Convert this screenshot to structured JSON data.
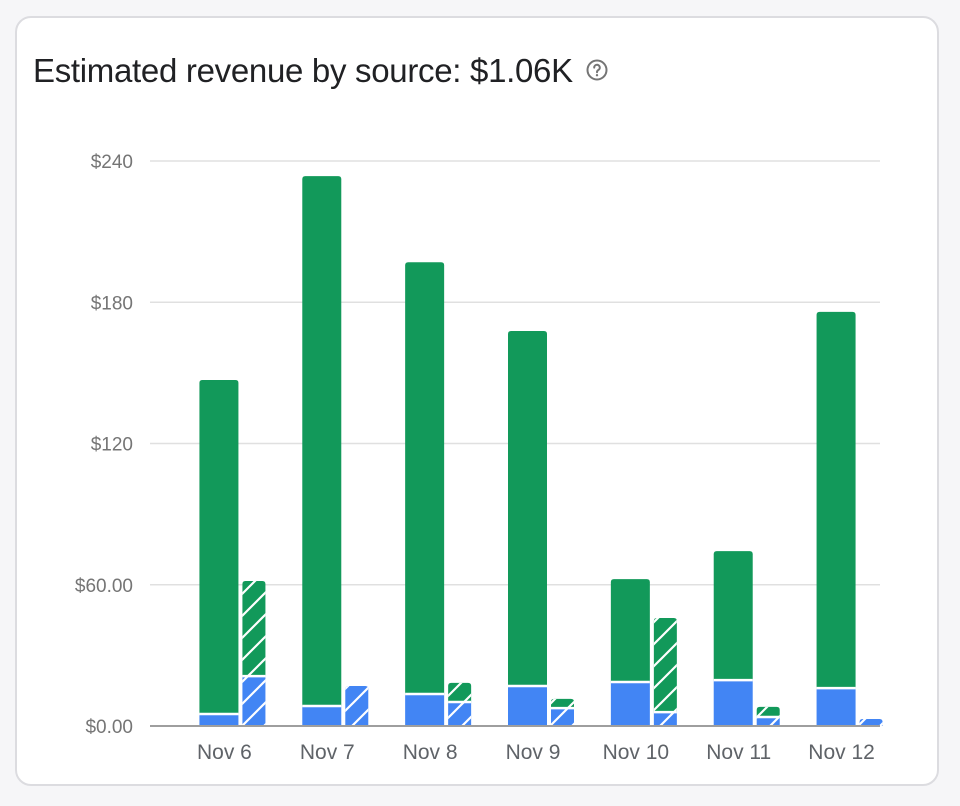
{
  "card": {
    "title": "Estimated revenue by source: $1.06K",
    "help_icon": "help-circle-icon"
  },
  "colors": {
    "green": "#12995a",
    "blue": "#4285f4",
    "grid": "#e0e0e0",
    "axis": "#9e9e9e"
  },
  "chart_data": {
    "type": "bar",
    "title": "Estimated revenue by source: $1.06K",
    "xlabel": "",
    "ylabel": "",
    "ylim": [
      0,
      240
    ],
    "yticks": [
      0,
      60,
      120,
      180,
      240
    ],
    "ytick_labels": [
      "$0.00",
      "$60.00",
      "$120",
      "$180",
      "$240"
    ],
    "grid": true,
    "stacked": true,
    "categories": [
      "Nov 6",
      "Nov 7",
      "Nov 8",
      "Nov 9",
      "Nov 10",
      "Nov 11",
      "Nov 12"
    ],
    "groups": [
      {
        "name": "solid",
        "pattern": "solid",
        "series": [
          {
            "name": "blue",
            "color": "#4285f4",
            "values": [
              5.1,
              8.5,
              13.6,
              17.0,
              18.7,
              19.5,
              16.1
            ]
          },
          {
            "name": "green",
            "color": "#12995a",
            "values": [
              141.9,
              225.1,
              183.4,
              150.8,
              43.7,
              54.8,
              159.8
            ]
          }
        ]
      },
      {
        "name": "hatched",
        "pattern": "hatched",
        "series": [
          {
            "name": "blue",
            "color": "#4285f4",
            "values": [
              21.2,
              17.0,
              10.2,
              7.6,
              5.9,
              3.8,
              3.0
            ]
          },
          {
            "name": "green",
            "color": "#12995a",
            "values": [
              40.4,
              0,
              8.1,
              3.9,
              40.0,
              4.3,
              0
            ]
          }
        ]
      }
    ]
  }
}
